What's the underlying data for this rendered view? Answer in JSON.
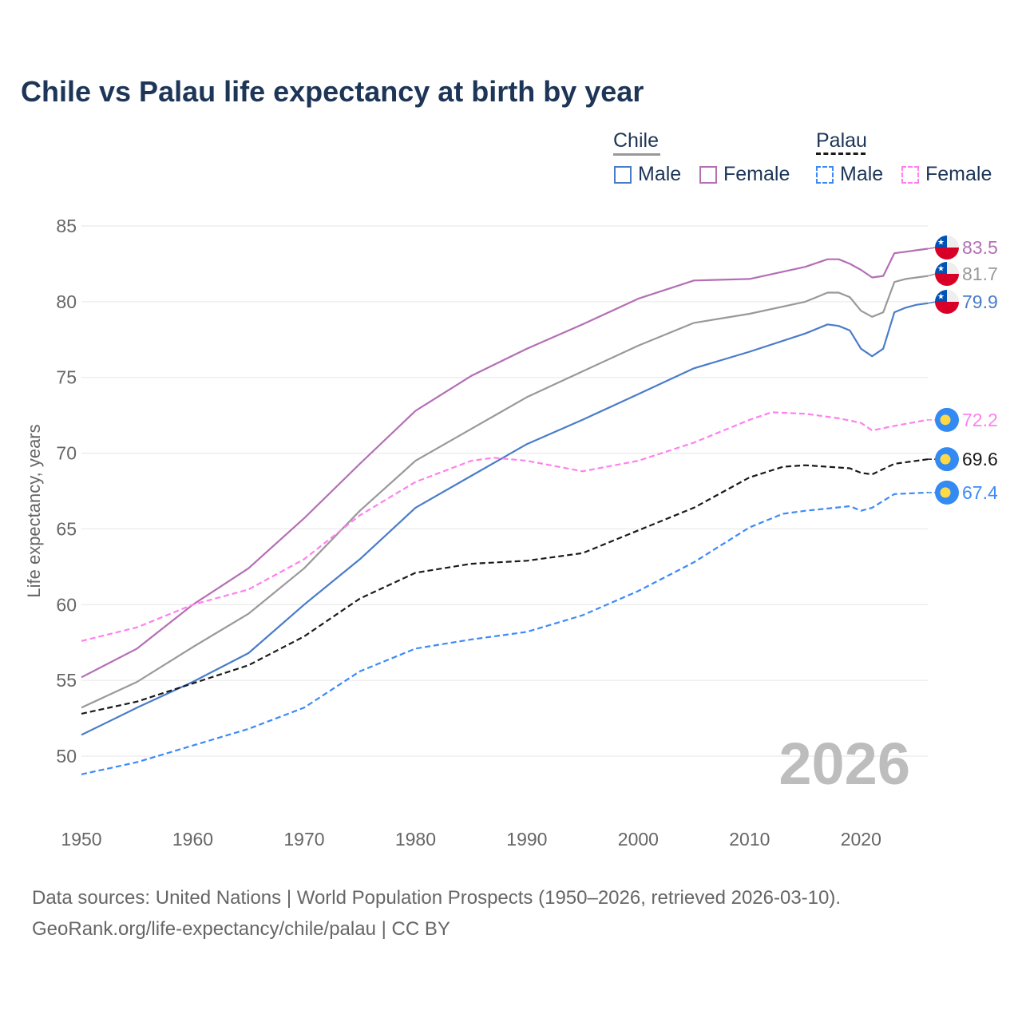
{
  "chart_data": {
    "type": "line",
    "title": "Chile vs Palau life expectancy at birth by year",
    "xlabel": "",
    "ylabel": "Life expectancy, years",
    "xlim": [
      1950,
      2026
    ],
    "ylim": [
      47,
      86
    ],
    "xticks": [
      1950,
      1960,
      1970,
      1980,
      1990,
      2000,
      2010,
      2020
    ],
    "yticks": [
      50,
      55,
      60,
      65,
      70,
      75,
      80,
      85
    ],
    "grid": true,
    "year_label": "2026",
    "legend": {
      "groups": [
        {
          "name": "Chile",
          "items": [
            "Male",
            "Female"
          ]
        },
        {
          "name": "Palau",
          "items": [
            "Male",
            "Female"
          ]
        }
      ],
      "placement": "top-right"
    },
    "series": [
      {
        "name": "Chile Female",
        "color": "#b46fb4",
        "dash": false,
        "flag": "chile",
        "end_label": "83.5",
        "x": [
          1950,
          1955,
          1960,
          1965,
          1970,
          1975,
          1980,
          1985,
          1990,
          1995,
          2000,
          2005,
          2010,
          2015,
          2017,
          2018,
          2019,
          2020,
          2021,
          2022,
          2023,
          2024,
          2025,
          2026
        ],
        "y": [
          55.2,
          57.1,
          60.0,
          62.4,
          65.7,
          69.3,
          72.8,
          75.1,
          76.9,
          78.5,
          80.2,
          81.4,
          81.5,
          82.3,
          82.8,
          82.8,
          82.5,
          82.1,
          81.6,
          81.7,
          83.2,
          83.3,
          83.4,
          83.5
        ]
      },
      {
        "name": "Chile",
        "color": "#999999",
        "dash": false,
        "flag": "chile",
        "end_label": "81.7",
        "x": [
          1950,
          1955,
          1960,
          1965,
          1970,
          1975,
          1980,
          1985,
          1990,
          1995,
          2000,
          2005,
          2010,
          2015,
          2017,
          2018,
          2019,
          2020,
          2021,
          2022,
          2023,
          2024,
          2025,
          2026
        ],
        "y": [
          53.2,
          54.9,
          57.2,
          59.4,
          62.4,
          66.2,
          69.5,
          71.6,
          73.7,
          75.4,
          77.1,
          78.6,
          79.2,
          80.0,
          80.6,
          80.6,
          80.3,
          79.4,
          79.0,
          79.3,
          81.3,
          81.5,
          81.6,
          81.7
        ]
      },
      {
        "name": "Chile Male",
        "color": "#4a7cc9",
        "dash": false,
        "flag": "chile",
        "end_label": "79.9",
        "x": [
          1950,
          1955,
          1960,
          1965,
          1970,
          1975,
          1980,
          1985,
          1990,
          1995,
          2000,
          2005,
          2010,
          2015,
          2017,
          2018,
          2019,
          2020,
          2021,
          2022,
          2023,
          2024,
          2025,
          2026
        ],
        "y": [
          51.4,
          53.2,
          54.9,
          56.8,
          60.0,
          63.0,
          66.4,
          68.5,
          70.6,
          72.2,
          73.9,
          75.6,
          76.7,
          77.9,
          78.5,
          78.4,
          78.1,
          76.9,
          76.4,
          76.9,
          79.3,
          79.6,
          79.8,
          79.9
        ]
      },
      {
        "name": "Palau Female",
        "color": "#ff80ee",
        "dash": true,
        "flag": "palau",
        "end_label": "72.2",
        "x": [
          1950,
          1955,
          1960,
          1965,
          1970,
          1975,
          1980,
          1985,
          1987,
          1990,
          1995,
          2000,
          2005,
          2010,
          2012,
          2015,
          2018,
          2020,
          2021,
          2023,
          2026
        ],
        "y": [
          57.6,
          58.5,
          60.0,
          61.0,
          63.0,
          65.9,
          68.1,
          69.5,
          69.7,
          69.5,
          68.8,
          69.5,
          70.7,
          72.2,
          72.7,
          72.6,
          72.3,
          72.0,
          71.5,
          71.8,
          72.2
        ]
      },
      {
        "name": "Palau",
        "color": "#1a1a1a",
        "dash": true,
        "flag": "palau",
        "end_label": "69.6",
        "x": [
          1950,
          1955,
          1960,
          1965,
          1970,
          1975,
          1980,
          1985,
          1990,
          1995,
          2000,
          2005,
          2010,
          2013,
          2015,
          2019,
          2020,
          2021,
          2023,
          2026
        ],
        "y": [
          52.8,
          53.6,
          54.8,
          56.0,
          57.9,
          60.4,
          62.1,
          62.7,
          62.9,
          63.4,
          64.9,
          66.4,
          68.4,
          69.1,
          69.2,
          69.0,
          68.7,
          68.6,
          69.3,
          69.6
        ]
      },
      {
        "name": "Palau Male",
        "color": "#3d8af7",
        "dash": true,
        "flag": "palau",
        "end_label": "67.4",
        "x": [
          1950,
          1955,
          1960,
          1965,
          1970,
          1975,
          1980,
          1985,
          1990,
          1995,
          2000,
          2005,
          2010,
          2013,
          2015,
          2019,
          2020,
          2021,
          2023,
          2026
        ],
        "y": [
          48.8,
          49.6,
          50.7,
          51.8,
          53.2,
          55.6,
          57.1,
          57.7,
          58.2,
          59.3,
          60.9,
          62.8,
          65.1,
          66.0,
          66.2,
          66.5,
          66.2,
          66.4,
          67.3,
          67.4
        ]
      }
    ]
  },
  "source": {
    "line1": "Data sources: United Nations | World Population Prospects (1950–2026, retrieved 2026-03-10).",
    "line2": "GeoRank.org/life-expectancy/chile/palau | CC BY"
  }
}
